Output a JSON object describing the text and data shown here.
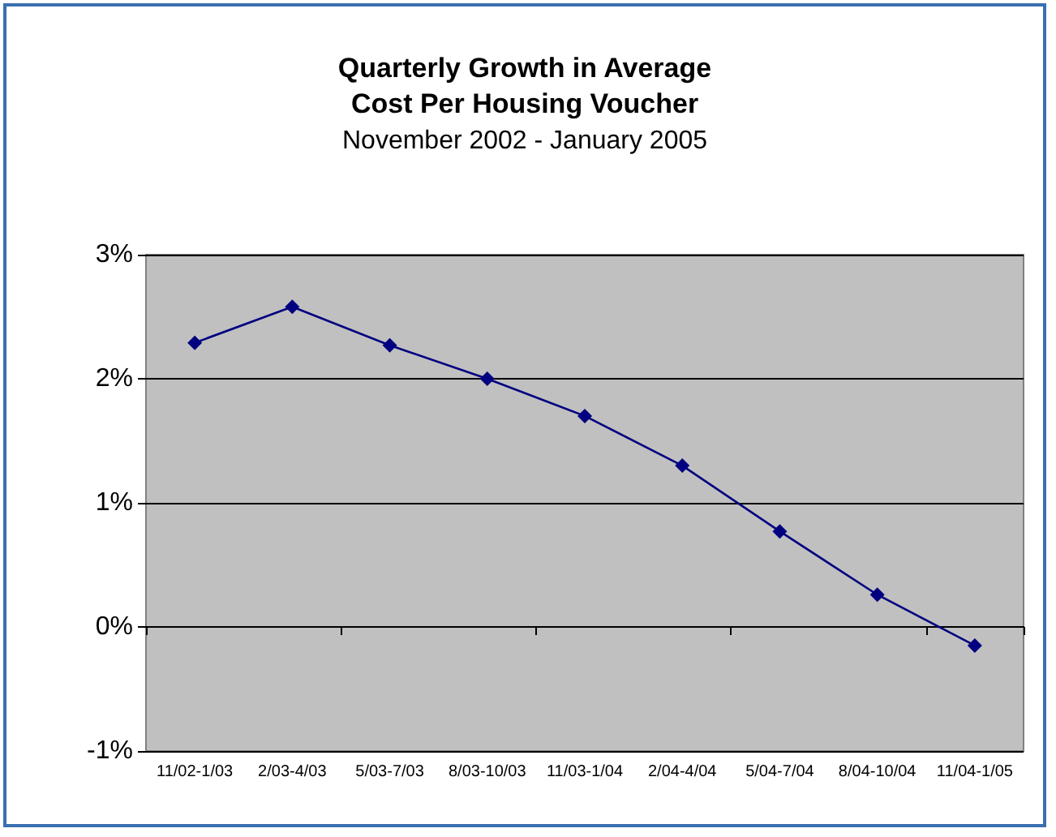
{
  "chart_data": {
    "type": "line",
    "title": "Quarterly Growth in Average\nCost Per Housing Voucher",
    "subtitle": "November 2002 - January 2005",
    "categories": [
      "11/02-1/03",
      "2/03-4/03",
      "5/03-7/03",
      "8/03-10/03",
      "11/03-1/04",
      "2/04-4/04",
      "5/04-7/04",
      "8/04-10/04",
      "11/04-1/05"
    ],
    "series": [
      {
        "color": "#000080",
        "values": [
          2.29,
          2.58,
          2.27,
          2.0,
          1.7,
          1.3,
          0.77,
          0.26,
          -0.15
        ]
      }
    ],
    "ylim": [
      -1,
      3
    ],
    "yticks": [
      {
        "value": -1,
        "label": "-1%"
      },
      {
        "value": 0,
        "label": "0%"
      },
      {
        "value": 1,
        "label": "1%"
      },
      {
        "value": 2,
        "label": "2%"
      },
      {
        "value": 3,
        "label": "3%"
      }
    ],
    "grid": "y",
    "marker": "diamond",
    "line_style": "solid"
  }
}
